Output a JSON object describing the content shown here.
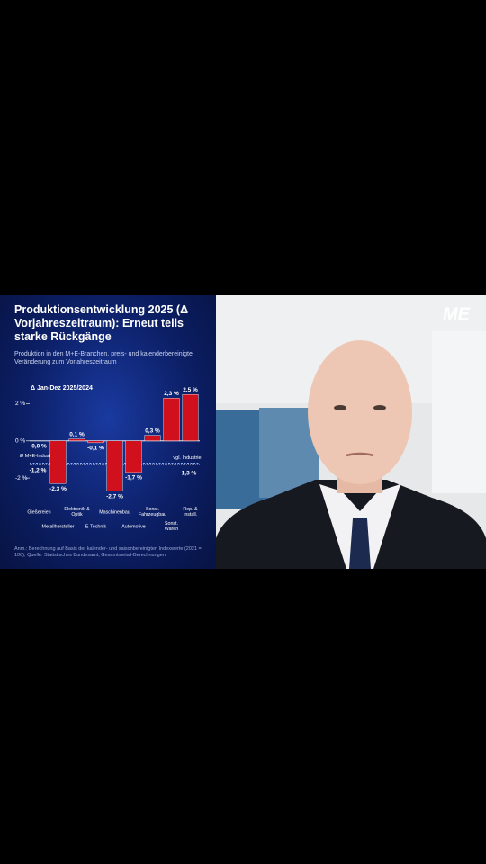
{
  "logo": "ME",
  "chart_data": {
    "type": "bar",
    "title": "Produktionsentwicklung 2025 (Δ Vorjahreszeitraum): Erneut teils starke Rückgänge",
    "subtitle": "Produktion in den M+E-Branchen, preis- und kalenderbereinigte Veränderung zum Vorjahreszeitraum",
    "y_label": "Δ Jan-Dez 2025/2024",
    "categories": [
      "Gießereien",
      "Metallhersteller",
      "Elektronik & Optik",
      "E-Technik",
      "Maschinenbau",
      "Automotive",
      "Sonst. Fahrzeugbau",
      "Sonst. Waren",
      "Rep. & Install."
    ],
    "values": [
      0.0,
      -2.3,
      0.1,
      -0.1,
      -2.7,
      -1.7,
      0.3,
      2.3,
      2.5
    ],
    "value_labels": [
      "0,0 %",
      "-2,3 %",
      "0,1 %",
      "-0,1 %",
      "-2,7 %",
      "-1,7 %",
      "0,3 %",
      "2,3 %",
      "2,5 %"
    ],
    "color": "#d0101c",
    "ylim": [
      -3.4,
      2.8
    ],
    "yticks": [
      {
        "value": 2,
        "label": "2 %"
      },
      {
        "value": 0,
        "label": "0 %"
      },
      {
        "value": -2,
        "label": "-2 %"
      }
    ],
    "reference_lines": [
      {
        "name": "Ø M+E-Industrie",
        "value": -1.2,
        "value_label": "-1,2 %"
      },
      {
        "name": "vgl. Industrie",
        "value": -1.3,
        "value_label": "- 1,3 %"
      }
    ],
    "note": "Anm.: Berechnung auf Basis der kalender- und saisonbereinigten Indexwerte (2021 = 100); Quelle: Statistisches Bundesamt, Gesamtmetall-Berechnungen"
  }
}
